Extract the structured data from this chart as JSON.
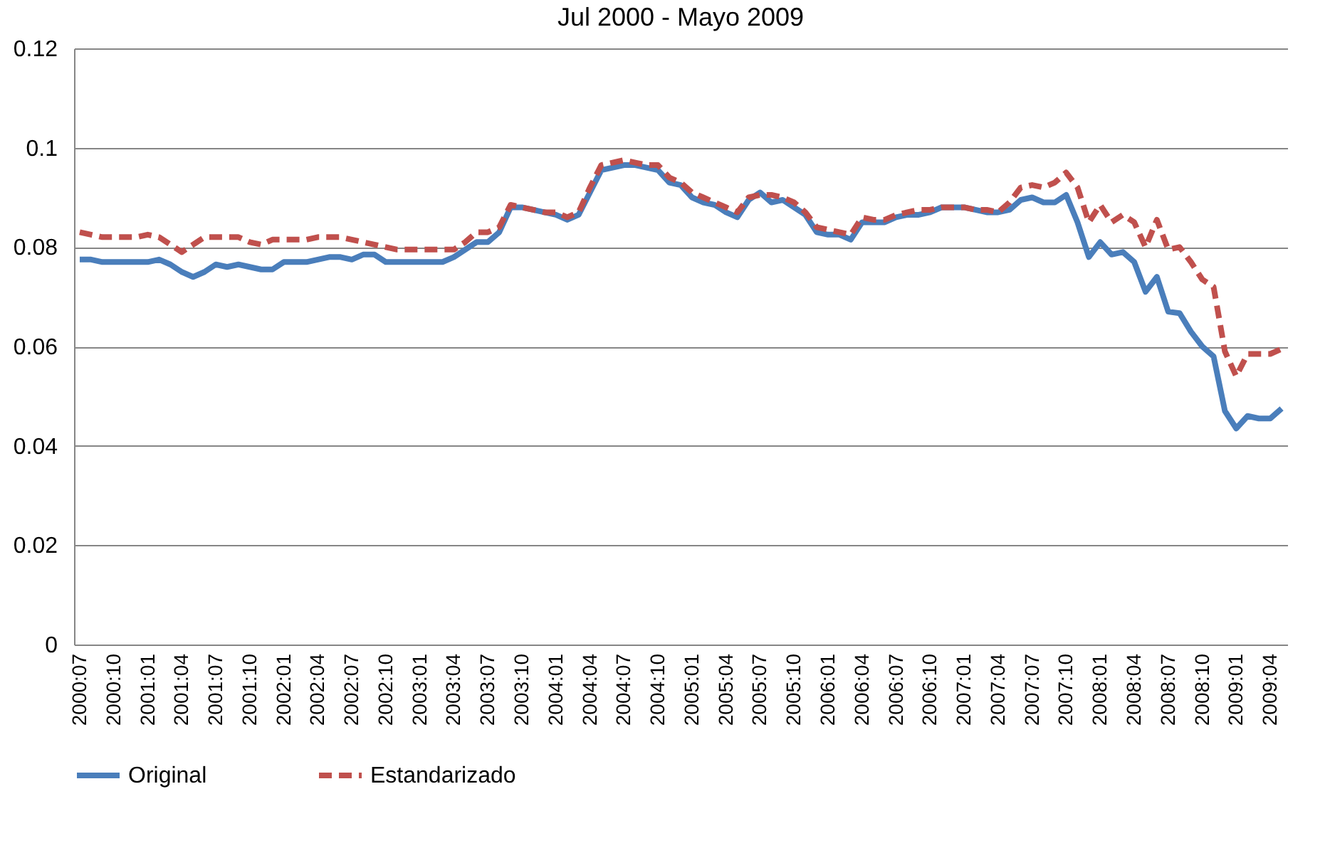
{
  "chart_data": {
    "type": "line",
    "title": "Jul 2000 - Mayo 2009",
    "categories": [
      "2000:07",
      null,
      null,
      "2000:10",
      null,
      null,
      "2001:01",
      null,
      null,
      "2001:04",
      null,
      null,
      "2001:07",
      null,
      null,
      "2001:10",
      null,
      null,
      "2002:01",
      null,
      null,
      "2002:04",
      null,
      null,
      "2002:07",
      null,
      null,
      "2002:10",
      null,
      null,
      "2003:01",
      null,
      null,
      "2003:04",
      null,
      null,
      "2003:07",
      null,
      null,
      "2003:10",
      null,
      null,
      "2004:01",
      null,
      null,
      "2004:04",
      null,
      null,
      "2004:07",
      null,
      null,
      "2004:10",
      null,
      null,
      "2005:01",
      null,
      null,
      "2005:04",
      null,
      null,
      "2005:07",
      null,
      null,
      "2005:10",
      null,
      null,
      "2006:01",
      null,
      null,
      "2006:04",
      null,
      null,
      "2006:07",
      null,
      null,
      "2006:10",
      null,
      null,
      "2007:01",
      null,
      null,
      "2007:04",
      null,
      null,
      "2007:07",
      null,
      null,
      "2007:10",
      null,
      null,
      "2008:01",
      null,
      null,
      "2008:04",
      null,
      null,
      "2008:07",
      null,
      null,
      "2008:10",
      null,
      null,
      "2009:01",
      null,
      null,
      "2009:04",
      null
    ],
    "series": [
      {
        "name": "Original",
        "color": "#4a7ebb",
        "line_style": "solid",
        "values": [
          0.0775,
          0.0775,
          0.077,
          0.077,
          0.077,
          0.077,
          0.077,
          0.0775,
          0.0765,
          0.075,
          0.074,
          0.075,
          0.0765,
          0.076,
          0.0765,
          0.076,
          0.0755,
          0.0755,
          0.077,
          0.077,
          0.077,
          0.0775,
          0.078,
          0.078,
          0.0775,
          0.0785,
          0.0785,
          0.077,
          0.077,
          0.077,
          0.077,
          0.077,
          0.077,
          0.078,
          0.0795,
          0.081,
          0.081,
          0.083,
          0.088,
          0.088,
          0.0875,
          0.087,
          0.0865,
          0.0855,
          0.0865,
          0.091,
          0.0955,
          0.096,
          0.0965,
          0.0965,
          0.096,
          0.0955,
          0.093,
          0.0925,
          0.09,
          0.089,
          0.0885,
          0.087,
          0.086,
          0.0895,
          0.091,
          0.089,
          0.0895,
          0.088,
          0.0865,
          0.083,
          0.0825,
          0.0825,
          0.0815,
          0.085,
          0.085,
          0.085,
          0.086,
          0.0865,
          0.0865,
          0.087,
          0.088,
          0.088,
          0.088,
          0.0875,
          0.087,
          0.087,
          0.0875,
          0.0895,
          0.09,
          0.089,
          0.089,
          0.0905,
          0.085,
          0.078,
          0.081,
          0.0785,
          0.079,
          0.077,
          0.071,
          0.074,
          0.067,
          0.0667,
          0.063,
          0.06,
          0.058,
          0.047,
          0.0435,
          0.046,
          0.0455,
          0.0455,
          0.0475
        ]
      },
      {
        "name": "Estandarizado",
        "color": "#c0504d",
        "line_style": "dashed",
        "values": [
          0.083,
          0.0825,
          0.082,
          0.082,
          0.082,
          0.082,
          0.0825,
          0.082,
          0.0805,
          0.079,
          0.0805,
          0.082,
          0.082,
          0.082,
          0.082,
          0.081,
          0.0805,
          0.0815,
          0.0815,
          0.0815,
          0.0815,
          0.082,
          0.082,
          0.082,
          0.0815,
          0.081,
          0.0805,
          0.08,
          0.0795,
          0.0795,
          0.0795,
          0.0795,
          0.0795,
          0.0795,
          0.081,
          0.083,
          0.083,
          0.084,
          0.0885,
          0.088,
          0.0875,
          0.087,
          0.087,
          0.086,
          0.087,
          0.092,
          0.0965,
          0.097,
          0.0975,
          0.097,
          0.0965,
          0.0965,
          0.094,
          0.093,
          0.091,
          0.09,
          0.089,
          0.088,
          0.087,
          0.09,
          0.0905,
          0.0905,
          0.09,
          0.089,
          0.087,
          0.084,
          0.0835,
          0.083,
          0.0825,
          0.086,
          0.0855,
          0.0855,
          0.0865,
          0.087,
          0.0875,
          0.0875,
          0.088,
          0.088,
          0.088,
          0.0875,
          0.0875,
          0.087,
          0.089,
          0.092,
          0.0925,
          0.092,
          0.093,
          0.095,
          0.092,
          0.085,
          0.0885,
          0.085,
          0.0865,
          0.085,
          0.08,
          0.0855,
          0.0795,
          0.08,
          0.077,
          0.0735,
          0.072,
          0.059,
          0.054,
          0.0585,
          0.0585,
          0.0585,
          0.0595
        ]
      }
    ],
    "ylim": [
      0,
      0.12
    ],
    "yticks": [
      0,
      0.02,
      0.04,
      0.06,
      0.08,
      0.1,
      0.12
    ],
    "grid": "y",
    "legend": "bottom",
    "marker": "none"
  }
}
